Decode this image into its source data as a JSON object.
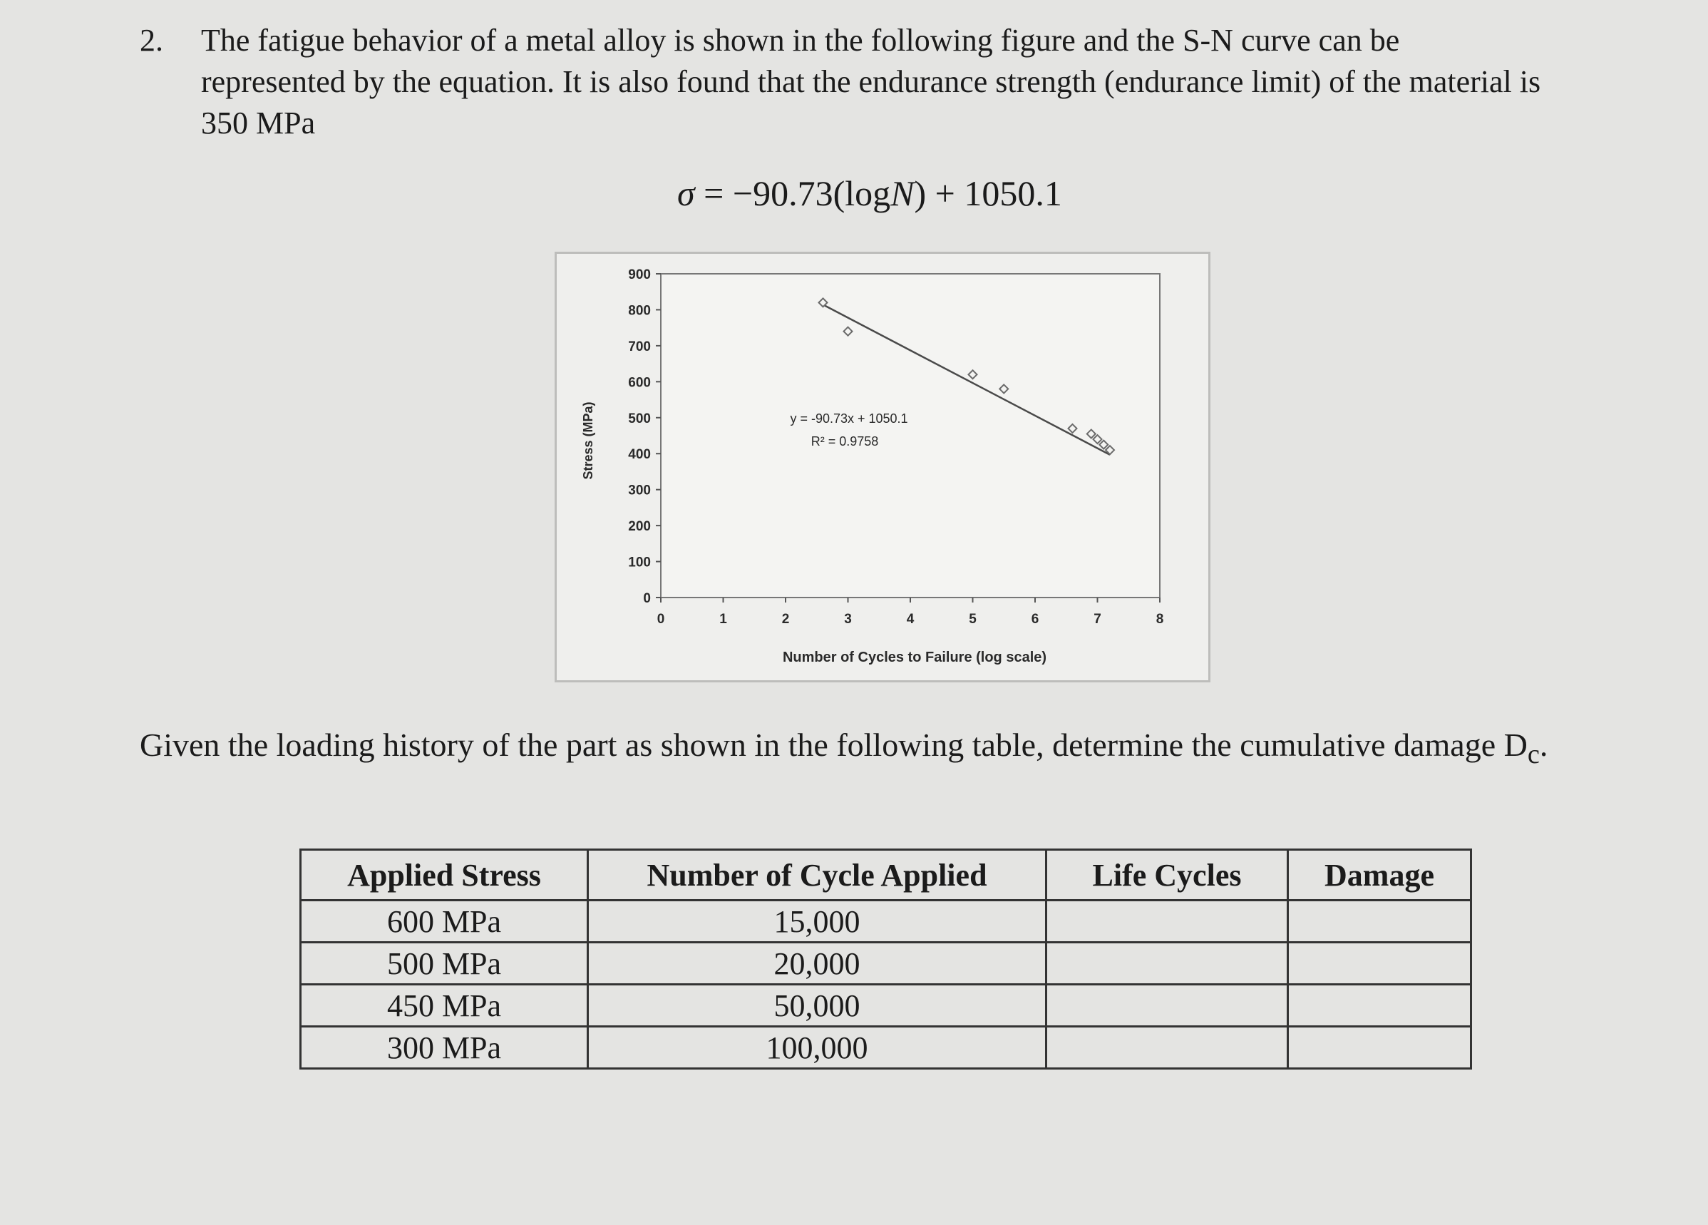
{
  "problem": {
    "number": "2.",
    "text": "The fatigue behavior of a metal alloy is shown in the following figure and the S-N curve can be represented by the equation. It is also found that the endurance strength (endurance limit) of the material is 350 MPa"
  },
  "equation": {
    "lhs": "σ",
    "rhs_a": " = −90.73(log",
    "var": "N",
    "rhs_b": ") + 1050.1"
  },
  "chart_data": {
    "type": "scatter",
    "ylabel": "Stress (MPa)",
    "xlabel": "Number of Cycles to Failure (log scale)",
    "xlim": [
      0,
      8
    ],
    "ylim": [
      0,
      900
    ],
    "xticks": [
      "0",
      "1",
      "2",
      "3",
      "4",
      "5",
      "6",
      "7",
      "8"
    ],
    "yticks": [
      "0",
      "100",
      "200",
      "300",
      "400",
      "500",
      "600",
      "700",
      "800",
      "900"
    ],
    "points": [
      {
        "x": 2.6,
        "y": 820
      },
      {
        "x": 3.0,
        "y": 740
      },
      {
        "x": 5.0,
        "y": 620
      },
      {
        "x": 5.5,
        "y": 580
      },
      {
        "x": 6.6,
        "y": 470
      },
      {
        "x": 6.9,
        "y": 455
      },
      {
        "x": 7.0,
        "y": 440
      },
      {
        "x": 7.1,
        "y": 425
      },
      {
        "x": 7.2,
        "y": 410
      }
    ],
    "trendline": {
      "slope": -90.73,
      "intercept": 1050.1,
      "x_start": 2.6,
      "x_end": 7.2
    },
    "annotation_eq": "y = -90.73x + 1050.1",
    "annotation_r2": "R² = 0.9758",
    "grid": false,
    "colors": {
      "points": "#6b6b6b",
      "line": "#4a4a4a",
      "axis": "#555555"
    }
  },
  "question": {
    "text": "Given the loading history of the part as shown in the following table, determine the cumulative damage D",
    "subscript": "c",
    "end": "."
  },
  "table": {
    "headers": [
      "Applied Stress",
      "Number of Cycle Applied",
      "Life Cycles",
      "Damage"
    ],
    "rows": [
      [
        "600 MPa",
        "15,000",
        "",
        ""
      ],
      [
        "500 MPa",
        "20,000",
        "",
        ""
      ],
      [
        "450 MPa",
        "50,000",
        "",
        ""
      ],
      [
        "300 MPa",
        "100,000",
        "",
        ""
      ]
    ]
  }
}
